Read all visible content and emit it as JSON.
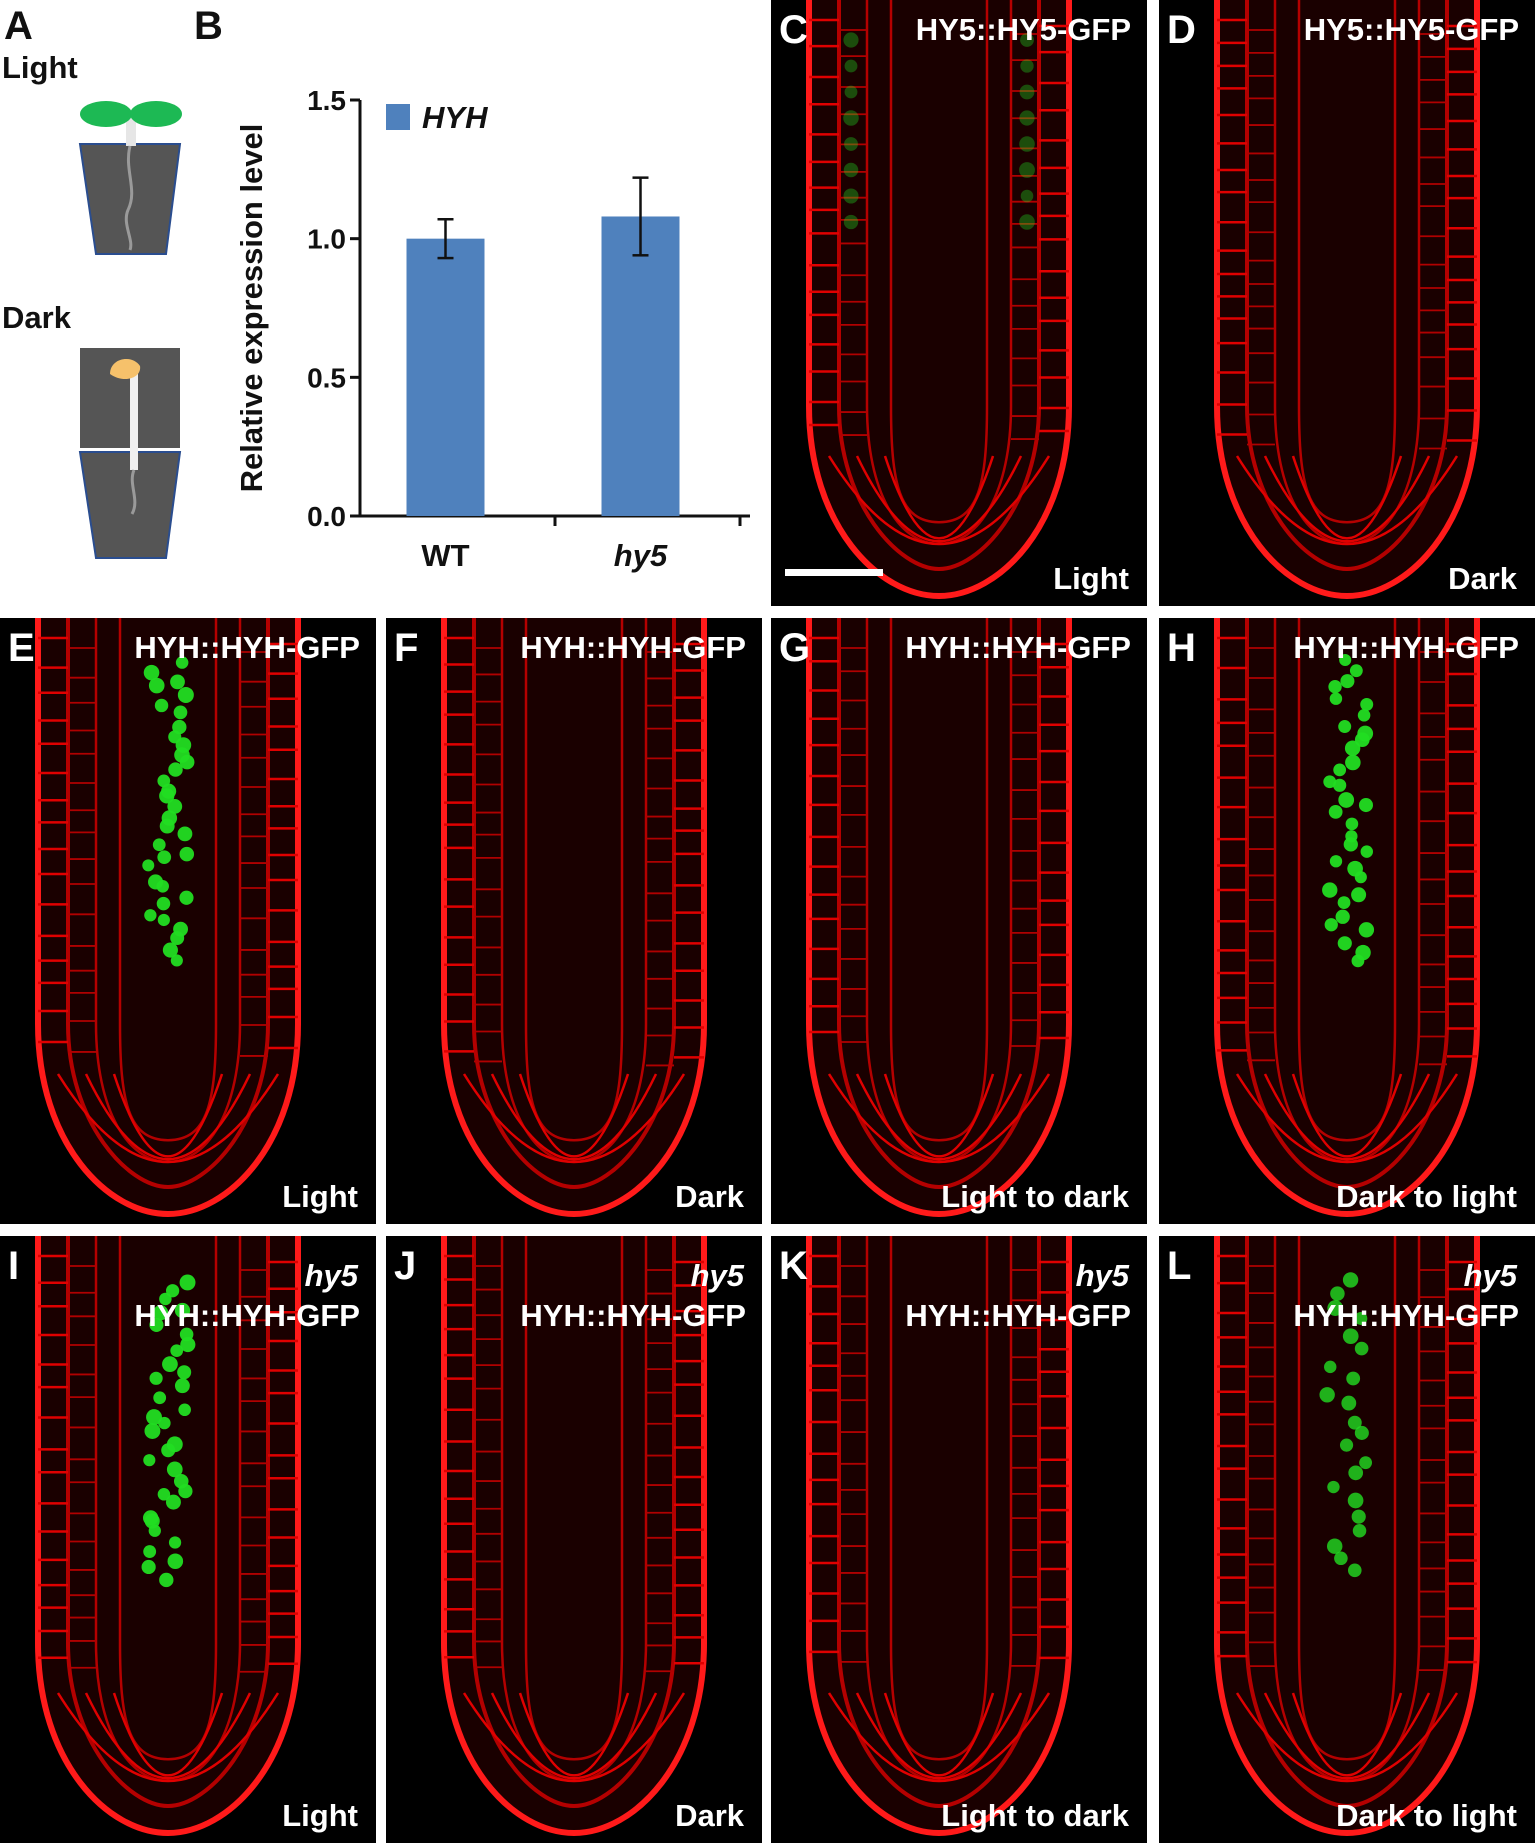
{
  "panel_a": {
    "letter": "A",
    "light_label": "Light",
    "dark_label": "Dark",
    "colors": {
      "cotyledon_light": "#1db954",
      "cotyledon_dark": "#f6c16b",
      "pot": "#555555",
      "pot_edge": "#2a4d8f"
    }
  },
  "chart_data": {
    "letter": "B",
    "type": "bar",
    "categories": [
      "WT",
      "hy5"
    ],
    "series": [
      {
        "name": "HYH",
        "values": [
          1.0,
          1.08
        ],
        "errors": [
          0.07,
          0.14
        ]
      }
    ],
    "ylabel": "Relative expression level",
    "xlabel": "",
    "ylim": [
      0,
      1.5
    ],
    "yticks": [
      "0.0",
      "0.5",
      "1.0",
      "1.5"
    ],
    "legend_position": "top-left",
    "bar_color": "#4f81bd"
  },
  "panels": [
    {
      "letter": "C",
      "construct": "HY5::HY5-GFP",
      "condition": "Light",
      "genotype": "",
      "gfp": "faint",
      "scale_bar": true
    },
    {
      "letter": "D",
      "construct": "HY5::HY5-GFP",
      "condition": "Dark",
      "genotype": "",
      "gfp": "none",
      "scale_bar": false
    },
    {
      "letter": "E",
      "construct": "HYH::HYH-GFP",
      "condition": "Light",
      "genotype": "",
      "gfp": "strong",
      "scale_bar": false
    },
    {
      "letter": "F",
      "construct": "HYH::HYH-GFP",
      "condition": "Dark",
      "genotype": "",
      "gfp": "none",
      "scale_bar": false
    },
    {
      "letter": "G",
      "construct": "HYH::HYH-GFP",
      "condition": "Light to dark",
      "genotype": "",
      "gfp": "none",
      "scale_bar": false
    },
    {
      "letter": "H",
      "construct": "HYH::HYH-GFP",
      "condition": "Dark to light",
      "genotype": "",
      "gfp": "strong",
      "scale_bar": false
    },
    {
      "letter": "I",
      "construct": "HYH::HYH-GFP",
      "condition": "Light",
      "genotype": "hy5",
      "gfp": "strong",
      "scale_bar": false
    },
    {
      "letter": "J",
      "construct": "HYH::HYH-GFP",
      "condition": "Dark",
      "genotype": "hy5",
      "gfp": "none",
      "scale_bar": false
    },
    {
      "letter": "K",
      "construct": "HYH::HYH-GFP",
      "condition": "Light to dark",
      "genotype": "hy5",
      "gfp": "none",
      "scale_bar": false
    },
    {
      "letter": "L",
      "construct": "HYH::HYH-GFP",
      "condition": "Dark to light",
      "genotype": "hy5",
      "gfp": "medium",
      "scale_bar": false
    }
  ]
}
